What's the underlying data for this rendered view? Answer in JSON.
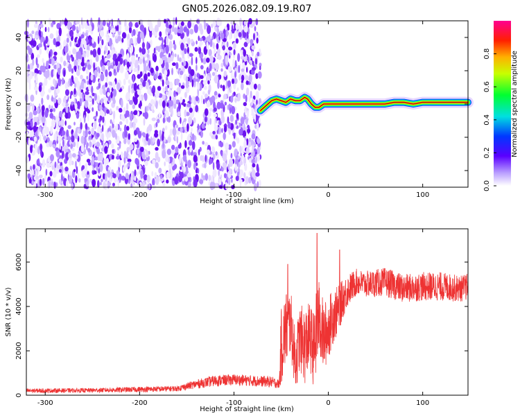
{
  "title": "GN05.2026.082.09.19.R07",
  "chart_data": [
    {
      "type": "heatmap",
      "name": "spectrogram",
      "xlabel": "Height of straight line (km)",
      "ylabel": "Frequency (Hz)",
      "xlim": [
        -320,
        148
      ],
      "ylim": [
        -50,
        50
      ],
      "xticks": [
        -300,
        -200,
        -100,
        0,
        100
      ],
      "yticks": [
        -40,
        -20,
        0,
        20,
        40
      ],
      "noise_region_x": [
        -320,
        -72
      ],
      "signal_track": {
        "x": [
          -72,
          -66,
          -60,
          -55,
          -50,
          -45,
          -40,
          -35,
          -30,
          -25,
          -22,
          -18,
          -14,
          -10,
          -5,
          0,
          20,
          40,
          60,
          70,
          80,
          90,
          100,
          110,
          120,
          130,
          148
        ],
        "freq": [
          -4,
          -1,
          2,
          3,
          2,
          1,
          3,
          2,
          2,
          4,
          3,
          0,
          -2,
          -2,
          0,
          0,
          0,
          0,
          0,
          1,
          1,
          0,
          1,
          1,
          1,
          1,
          1
        ]
      },
      "colorbar": {
        "label": "Normalized spectral amplitude",
        "range": [
          0.0,
          1.0
        ],
        "ticks": [
          0.0,
          0.2,
          0.4,
          0.6,
          0.8
        ],
        "tick_labels": [
          "0.0",
          "0.2",
          "0.4",
          "0.6",
          "0.8"
        ]
      }
    },
    {
      "type": "line",
      "name": "snr",
      "xlabel": "Height of straight line (km)",
      "ylabel": "SNR (10 * v/v)",
      "xlim": [
        -320,
        148
      ],
      "ylim": [
        0,
        7500
      ],
      "xticks": [
        -300,
        -200,
        -100,
        0,
        100
      ],
      "yticks": [
        0,
        2000,
        4000,
        6000
      ],
      "series": [
        {
          "name": "SNR",
          "color": "#ee3333",
          "x": [
            -320,
            -250,
            -200,
            -160,
            -140,
            -120,
            -100,
            -80,
            -60,
            -52,
            -50,
            -45,
            -40,
            -35,
            -30,
            -25,
            -20,
            -15,
            -12,
            -10,
            -5,
            0,
            5,
            10,
            15,
            20,
            30,
            40,
            60,
            80,
            100,
            120,
            140,
            148
          ],
          "y": [
            200,
            220,
            260,
            300,
            500,
            650,
            700,
            650,
            600,
            500,
            2200,
            3000,
            3300,
            1500,
            2600,
            2200,
            2700,
            2000,
            3000,
            3500,
            2600,
            3000,
            3600,
            3800,
            4300,
            4700,
            5100,
            5000,
            5100,
            4800,
            4900,
            4900,
            4800,
            4900
          ],
          "spread": [
            200,
            200,
            250,
            250,
            400,
            500,
            500,
            500,
            500,
            400,
            3500,
            3500,
            3000,
            2800,
            3000,
            3500,
            3000,
            3500,
            4000,
            3500,
            3200,
            2800,
            2600,
            2200,
            1800,
            1500,
            1200,
            1200,
            1300,
            1300,
            1300,
            1300,
            1200,
            1200
          ],
          "peaks": [
            {
              "x": -43,
              "y": 5900
            },
            {
              "x": -12,
              "y": 7300
            },
            {
              "x": 12,
              "y": 6550
            }
          ]
        }
      ]
    }
  ]
}
